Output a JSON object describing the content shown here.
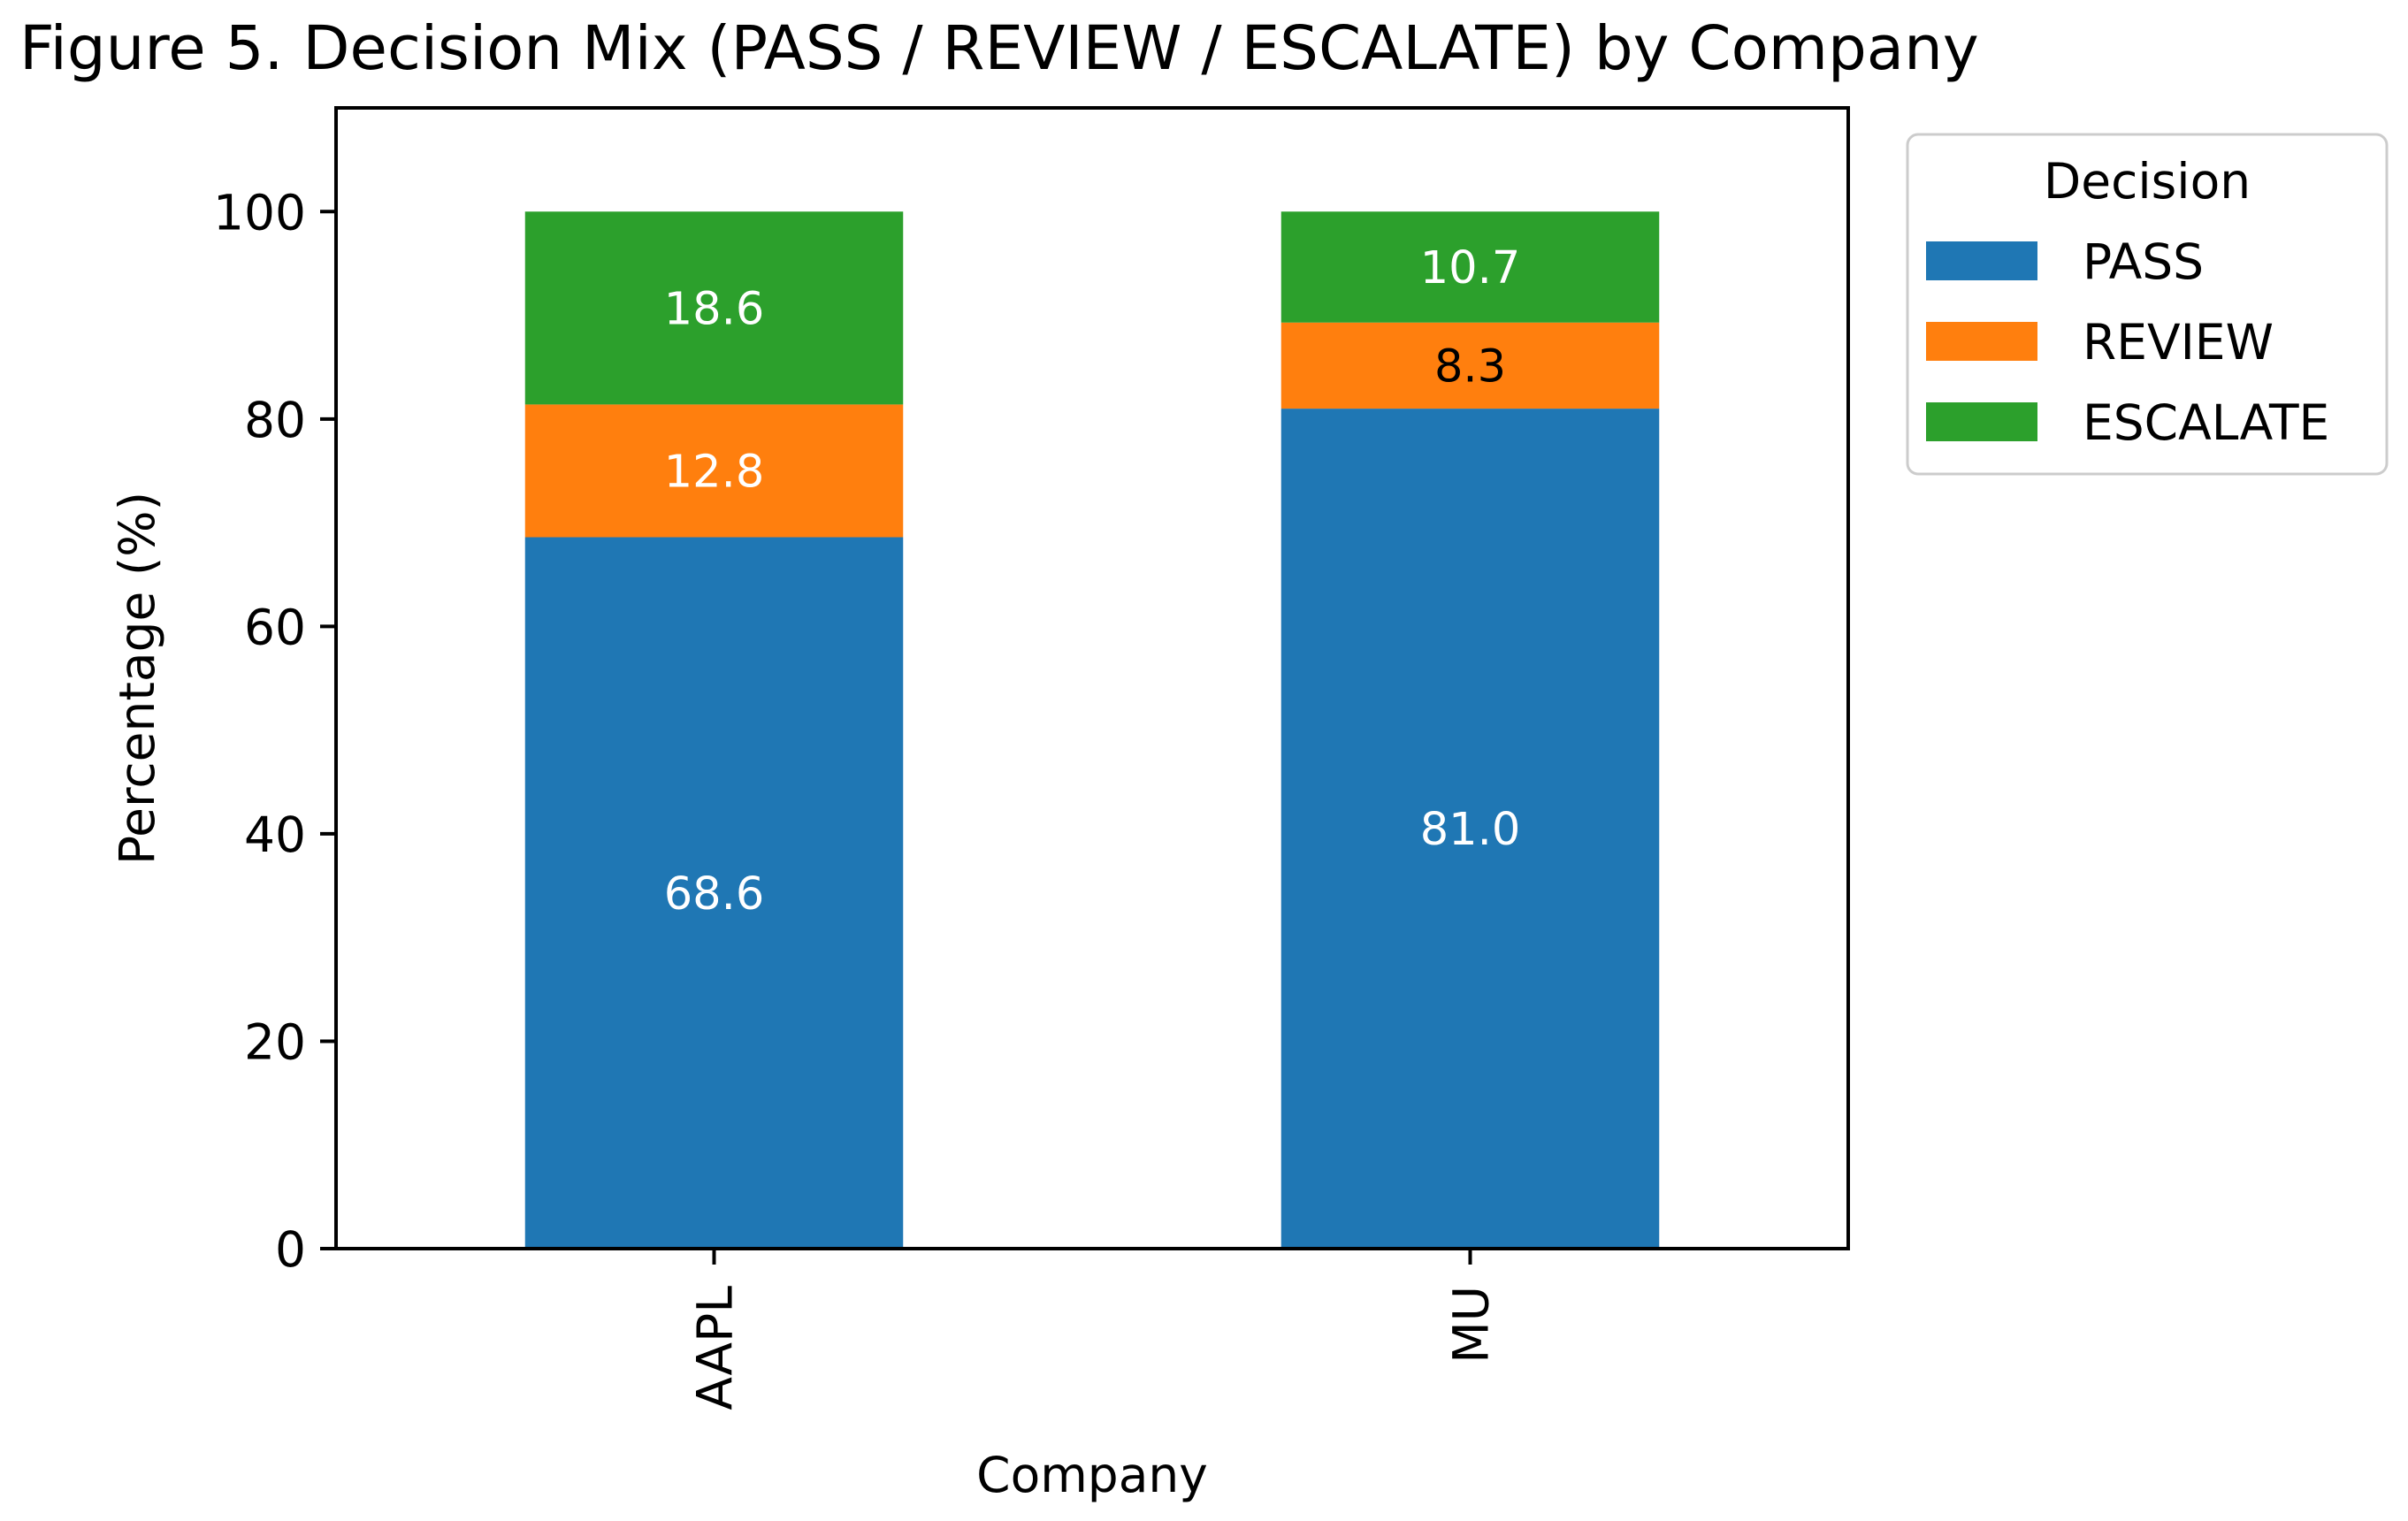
{
  "chart_data": {
    "type": "bar",
    "stacked": true,
    "title": "Figure 5. Decision Mix (PASS / REVIEW / ESCALATE) by Company",
    "xlabel": "Company",
    "ylabel": "Percentage (%)",
    "categories": [
      "AAPL",
      "MU"
    ],
    "ylim": [
      0,
      110
    ],
    "yticks": [
      0,
      20,
      40,
      60,
      80,
      100
    ],
    "grid": false,
    "series": [
      {
        "name": "PASS",
        "values": [
          68.6,
          81.0
        ],
        "labels": [
          "68.6",
          "81.0"
        ],
        "color": "#1f77b4",
        "label_color": "#ffffff"
      },
      {
        "name": "REVIEW",
        "values": [
          12.8,
          8.3
        ],
        "labels": [
          "12.8",
          "8.3"
        ],
        "color": "#ff7f0e",
        "label_color": "#ffffff"
      },
      {
        "name": "ESCALATE",
        "values": [
          18.6,
          10.7
        ],
        "labels": [
          "18.6",
          "10.7"
        ],
        "color": "#2ca02c",
        "label_color": "#ffffff"
      }
    ],
    "legend": {
      "title": "Decision",
      "placement": "outside-right-top"
    }
  }
}
